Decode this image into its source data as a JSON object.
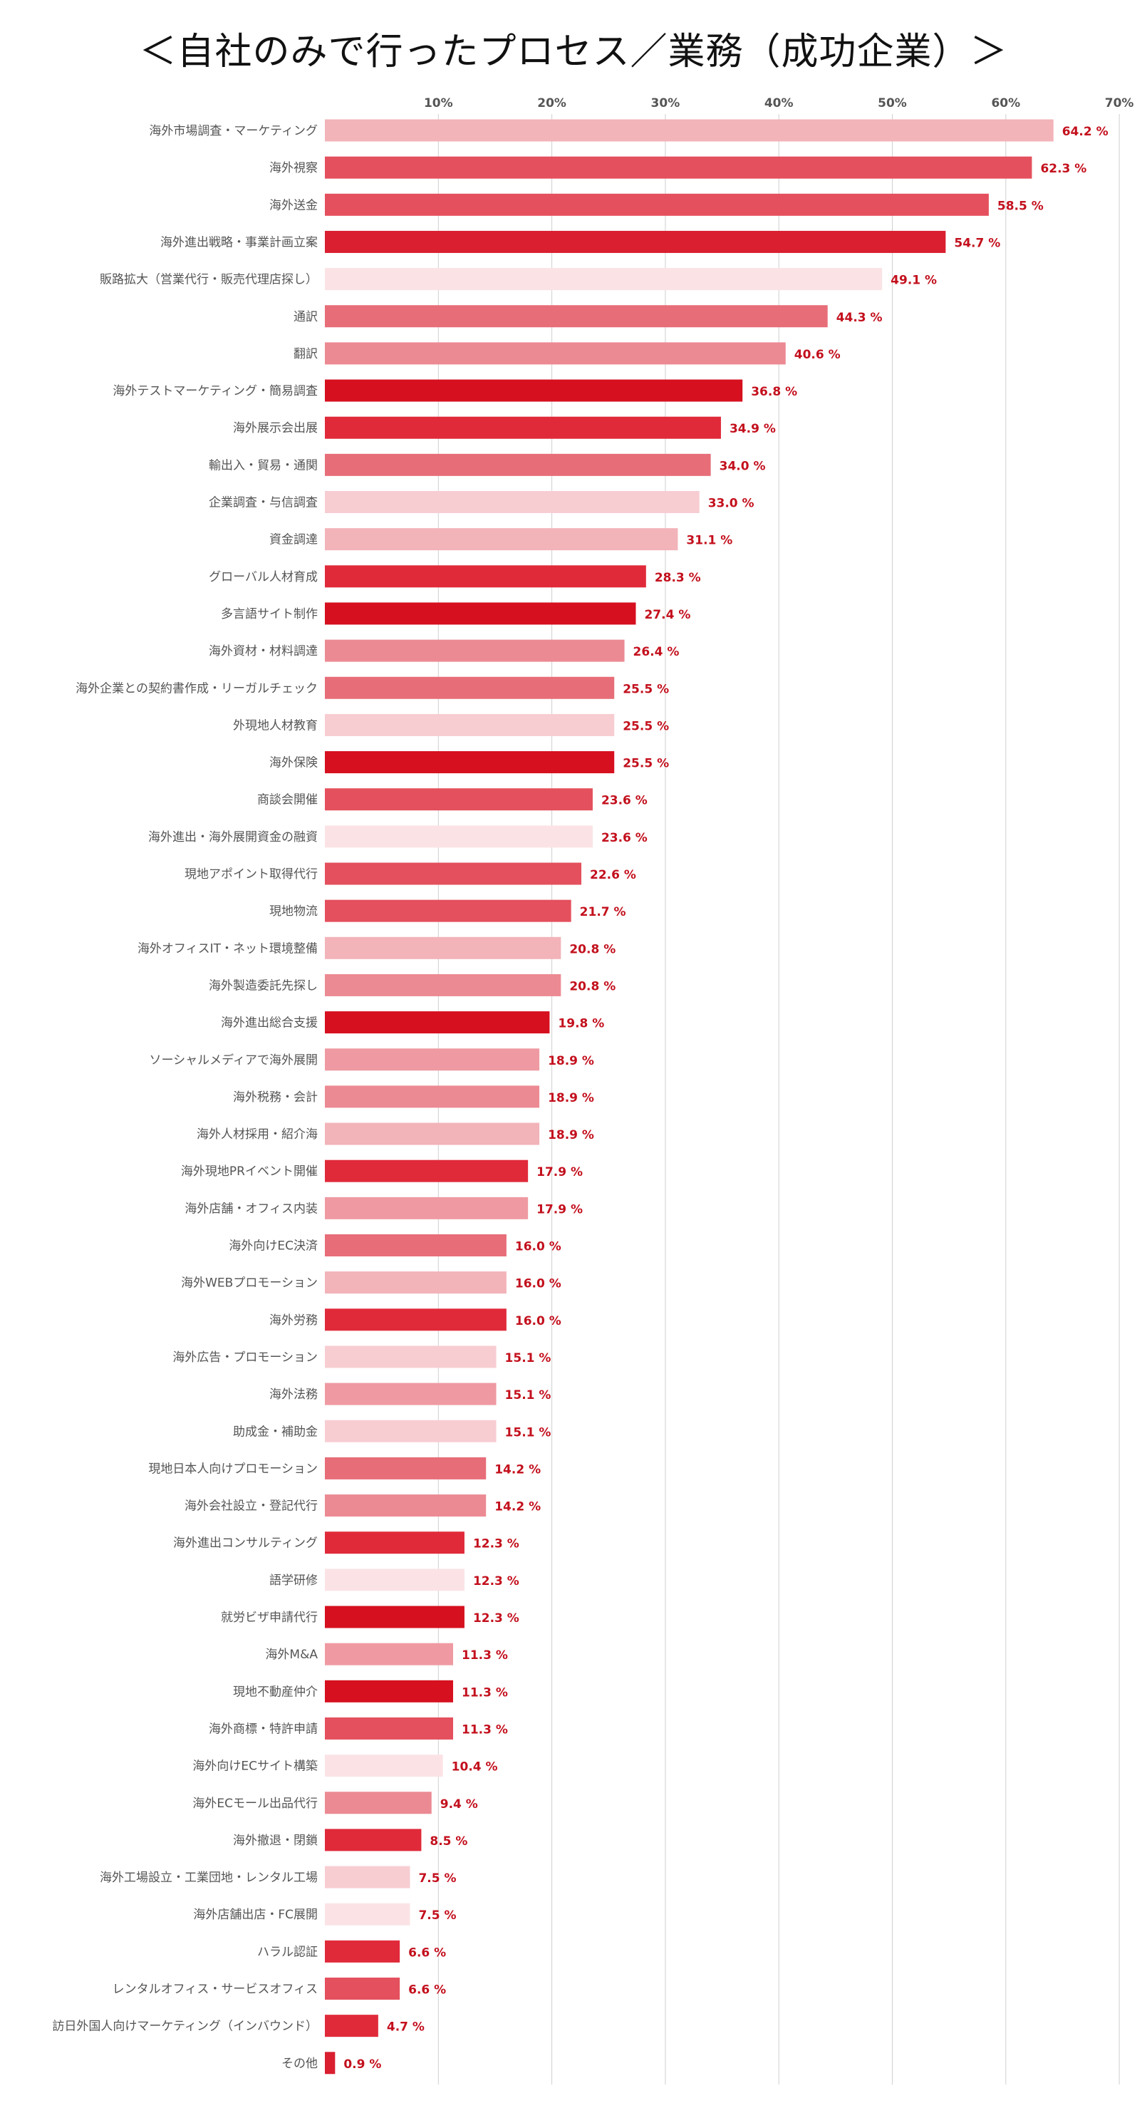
{
  "chart_data": {
    "type": "bar",
    "orientation": "horizontal",
    "title": "＜自社のみで行ったプロセス／業務（成功企業）＞",
    "xlim": [
      0,
      70
    ],
    "ticks": [
      "10%",
      "20%",
      "30%",
      "40%",
      "50%",
      "60%",
      "70%"
    ],
    "tick_values": [
      10,
      20,
      30,
      40,
      50,
      60,
      70
    ],
    "grid": true,
    "value_suffix": " %",
    "categories": [
      "海外市場調査・マーケティング",
      "海外視察",
      "海外送金",
      "海外進出戦略・事業計画立案",
      "販路拡大（営業代行・販売代理店探し）",
      "通訳",
      "翻訳",
      "海外テストマーケティング・簡易調査",
      "海外展示会出展",
      "輸出入・貿易・通関",
      "企業調査・与信調査",
      "資金調達",
      "グローバル人材育成",
      "多言語サイト制作",
      "海外資材・材料調達",
      "海外企業との契約書作成・リーガルチェック",
      "外現地人材教育",
      "海外保険",
      "商談会開催",
      "海外進出・海外展開資金の融資",
      "現地アポイント取得代行",
      "現地物流",
      "海外オフィスIT・ネット環境整備",
      "海外製造委託先探し",
      "海外進出総合支援",
      "ソーシャルメディアで海外展開",
      "海外税務・会計",
      "海外人材採用・紹介海",
      "海外現地PRイベント開催",
      "海外店舗・オフィス内装",
      "海外向けEC決済",
      "海外WEBプロモーション",
      "海外労務",
      "海外広告・プロモーション",
      "海外法務",
      "助成金・補助金",
      "現地日本人向けプロモーション",
      "海外会社設立・登記代行",
      "海外進出コンサルティング",
      "語学研修",
      "就労ビザ申請代行",
      "海外M&A",
      "現地不動産仲介",
      "海外商標・特許申請",
      "海外向けECサイト構築",
      "海外ECモール出品代行",
      "海外撤退・閉鎖",
      "海外工場設立・工業団地・レンタル工場",
      "海外店舗出店・FC展開",
      "ハラル認証",
      "レンタルオフィス・サービスオフィス",
      "訪日外国人向けマーケティング（インバウンド）",
      "その他"
    ],
    "values": [
      64.2,
      62.3,
      58.5,
      54.7,
      49.1,
      44.3,
      40.6,
      36.8,
      34.9,
      34.0,
      33.0,
      31.1,
      28.3,
      27.4,
      26.4,
      25.5,
      25.5,
      25.5,
      23.6,
      23.6,
      22.6,
      21.7,
      20.8,
      20.8,
      19.8,
      18.9,
      18.9,
      18.9,
      17.9,
      17.9,
      16.0,
      16.0,
      16.0,
      15.1,
      15.1,
      15.1,
      14.2,
      14.2,
      12.3,
      12.3,
      12.3,
      11.3,
      11.3,
      11.3,
      10.4,
      9.4,
      8.5,
      7.5,
      7.5,
      6.6,
      6.6,
      4.7,
      0.9
    ],
    "value_labels": [
      "64.2 %",
      "62.3 %",
      "58.5 %",
      "54.7 %",
      "49.1 %",
      "44.3 %",
      "40.6 %",
      "36.8 %",
      "34.9 %",
      "34.0 %",
      "33.0 %",
      "31.1 %",
      "28.3 %",
      "27.4 %",
      "26.4 %",
      "25.5 %",
      "25.5 %",
      "25.5 %",
      "23.6 %",
      "23.6 %",
      "22.6 %",
      "21.7 %",
      "20.8 %",
      "20.8 %",
      "19.8 %",
      "18.9 %",
      "18.9 %",
      "18.9 %",
      "17.9 %",
      "17.9 %",
      "16.0 %",
      "16.0 %",
      "16.0 %",
      "15.1 %",
      "15.1 %",
      "15.1 %",
      "14.2 %",
      "14.2 %",
      "12.3 %",
      "12.3 %",
      "12.3 %",
      "11.3 %",
      "11.3 %",
      "11.3 %",
      "10.4 %",
      "9.4 %",
      "8.5 %",
      "7.5 %",
      "7.5 %",
      "6.6 %",
      "6.6 %",
      "4.7 %",
      "0.9 %"
    ],
    "colors": [
      "#f2b3b9",
      "#e4505d",
      "#e4505d",
      "#d91f30",
      "#fbe3e5",
      "#e76d78",
      "#ec8a93",
      "#d6101f",
      "#e02a3a",
      "#e76d78",
      "#f7cdd2",
      "#f2b3b9",
      "#e02a3a",
      "#d6101f",
      "#ec8a93",
      "#e76d78",
      "#f7cdd2",
      "#d6101f",
      "#e4505d",
      "#fbe3e5",
      "#e4505d",
      "#e4505d",
      "#f2b3b9",
      "#ec8a93",
      "#d6101f",
      "#ef9aa2",
      "#ec8a93",
      "#f2b3b9",
      "#e02a3a",
      "#ef9aa2",
      "#e76d78",
      "#f2b3b9",
      "#e02a3a",
      "#f7cdd2",
      "#ef9aa2",
      "#f7cdd2",
      "#e76d78",
      "#ec8a93",
      "#e02a3a",
      "#fbe3e5",
      "#d6101f",
      "#ef9aa2",
      "#d6101f",
      "#e4505d",
      "#fbe3e5",
      "#ec8a93",
      "#e02a3a",
      "#f7cdd2",
      "#fbe3e5",
      "#e02a3a",
      "#e4505d",
      "#e02a3a",
      "#d91f30"
    ],
    "value_label_color": "#c3101d"
  }
}
